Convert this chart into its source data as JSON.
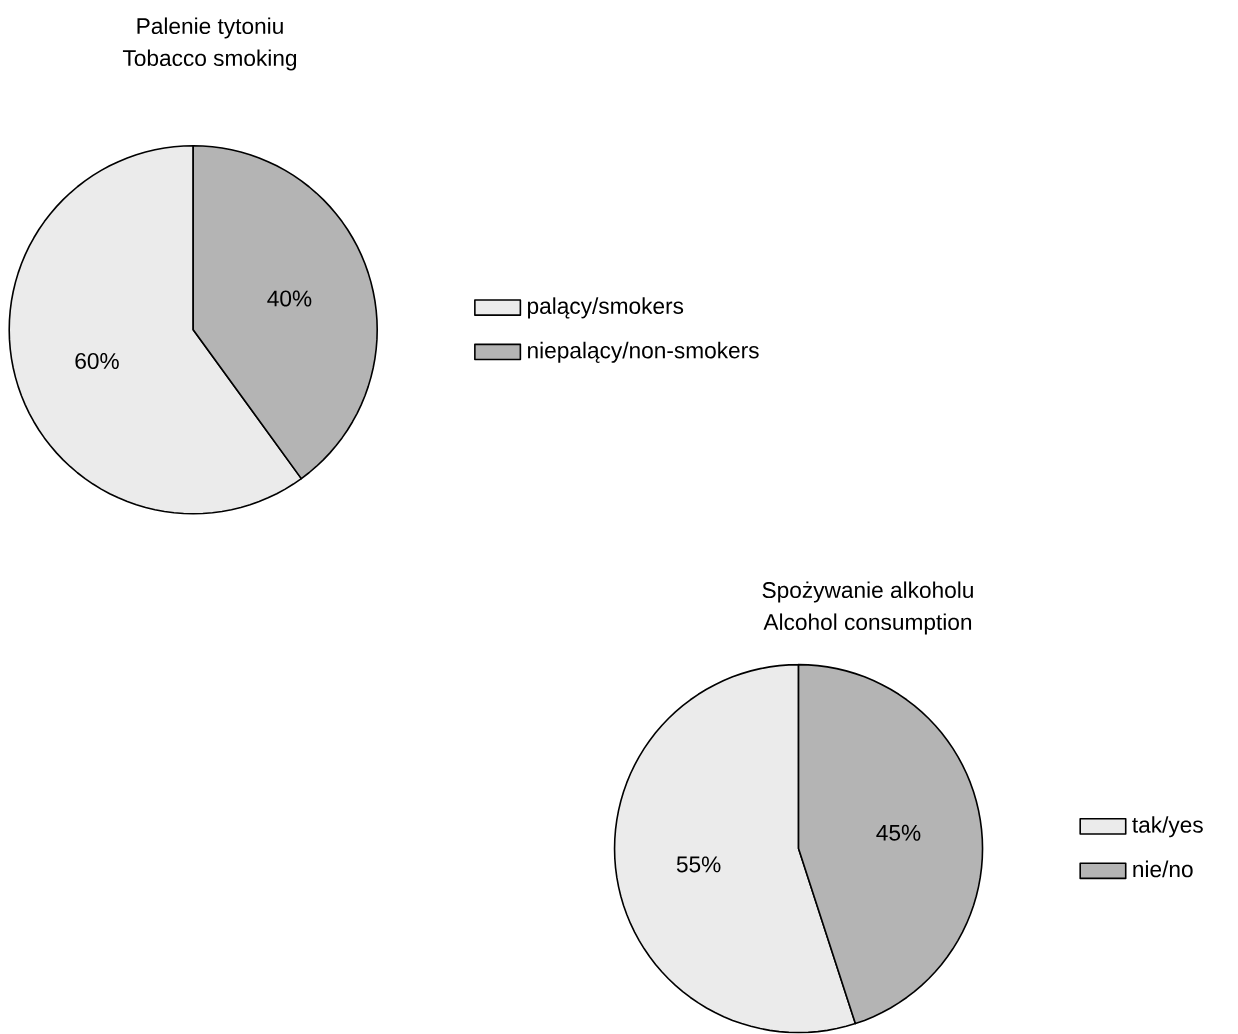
{
  "chart_data": [
    {
      "type": "pie",
      "title": "Palenie tytoniu",
      "subtitle": "Tobacco smoking",
      "categories": [
        "palący/smokers",
        "niepalący/non-smokers"
      ],
      "values": [
        60,
        40
      ],
      "value_labels": [
        "60%",
        "40%"
      ],
      "colors": [
        "#ebebeb",
        "#b4b4b4"
      ],
      "legend": "right"
    },
    {
      "type": "pie",
      "title": "Spożywanie alkoholu",
      "subtitle": "Alcohol consumption",
      "categories": [
        "tak/yes",
        "nie/no"
      ],
      "values": [
        55,
        45
      ],
      "value_labels": [
        "55%",
        "45%"
      ],
      "colors": [
        "#ebebeb",
        "#b4b4b4"
      ],
      "legend": "right"
    }
  ]
}
